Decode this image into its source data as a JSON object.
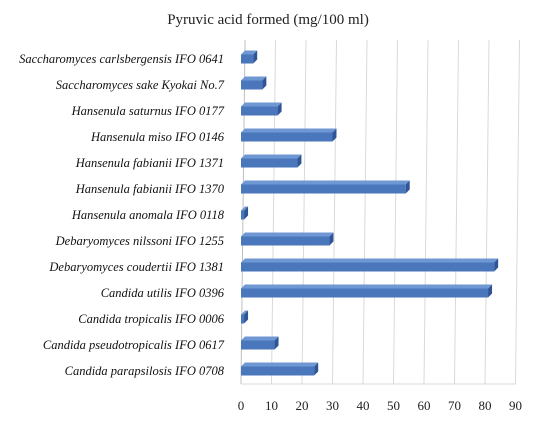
{
  "chart_data": {
    "type": "bar",
    "orientation": "horizontal",
    "title": "Pyruvic acid formed (mg/100 ml)",
    "xlabel": "",
    "ylabel": "",
    "xlim": [
      0,
      90
    ],
    "xticks": [
      0,
      10,
      20,
      30,
      40,
      50,
      60,
      70,
      80,
      90
    ],
    "grid": true,
    "legend": "none",
    "style": "3d",
    "bar_color": "#4a77bc",
    "categories": [
      "Saccharomyces carlsbergensis IFO 0641",
      "Saccharomyces sake Kyokai No.7",
      "Hansenula saturnus IFO 0177",
      "Hansenula miso IFO 0146",
      "Hansenula fabianii IFO 1371",
      "Hansenula fabianii IFO 1370",
      "Hansenula anomala IFO 0118",
      "Debaryomyces nilssoni IFO 1255",
      "Debaryomyces coudertii IFO 1381",
      "Candida utilis IFO 0396",
      "Candida tropicalis IFO 0006",
      "Candida pseudotropicalis IFO 0617",
      "Candida parapsilosis IFO 0708"
    ],
    "values": [
      4,
      7,
      12,
      30,
      18.5,
      54,
      1,
      29,
      83,
      81,
      1,
      11,
      24
    ]
  }
}
